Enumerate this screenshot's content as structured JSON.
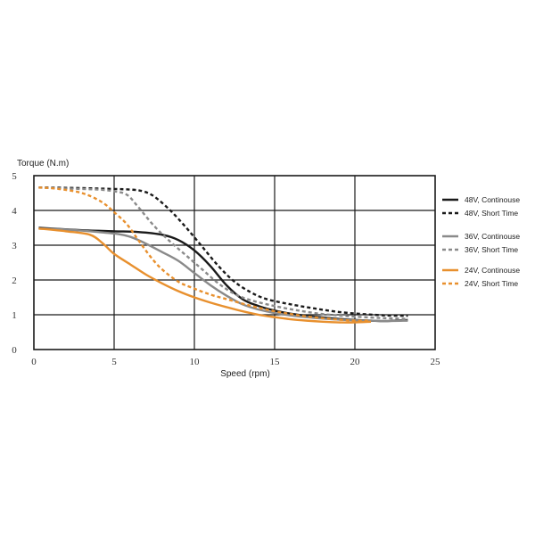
{
  "chart_data": {
    "type": "line",
    "title": "",
    "xlabel": "Speed (rpm)",
    "ylabel": "Torque (N.m)",
    "xlim": [
      0,
      25
    ],
    "ylim": [
      0,
      5
    ],
    "xticks": [
      0,
      5,
      10,
      15,
      20,
      25
    ],
    "yticks": [
      0,
      1,
      2,
      3,
      4,
      5
    ],
    "grid": true,
    "legend_position": "right",
    "series": [
      {
        "name": "48V, Continouse",
        "color": "#1a1a1a",
        "style": "solid",
        "x": [
          0.3,
          3,
          5,
          6.5,
          8,
          9,
          10,
          11,
          12,
          13,
          14,
          15,
          16,
          17,
          18,
          19,
          20,
          21,
          22,
          23.3
        ],
        "y": [
          3.5,
          3.43,
          3.4,
          3.38,
          3.3,
          3.15,
          2.85,
          2.4,
          1.85,
          1.45,
          1.25,
          1.12,
          1.03,
          0.97,
          0.92,
          0.88,
          0.85,
          0.83,
          0.82,
          0.85
        ]
      },
      {
        "name": "48V, Short  Time",
        "color": "#1a1a1a",
        "style": "dashed",
        "x": [
          0.3,
          2,
          4,
          6,
          6.8,
          7.5,
          8.5,
          9.5,
          10.5,
          11.5,
          12.5,
          13.5,
          14.5,
          16,
          17.5,
          19,
          20.5,
          22,
          23.3
        ],
        "y": [
          4.66,
          4.65,
          4.63,
          4.6,
          4.55,
          4.4,
          4.0,
          3.5,
          2.95,
          2.4,
          1.95,
          1.65,
          1.45,
          1.3,
          1.18,
          1.08,
          1.02,
          0.98,
          0.97
        ]
      },
      {
        "name": "36V, Continouse",
        "color": "#8a8a8a",
        "style": "solid",
        "x": [
          0.3,
          2,
          4,
          5.5,
          6.5,
          8,
          9,
          10,
          11,
          12,
          13,
          14,
          15,
          16,
          17,
          18,
          19,
          20,
          21,
          22,
          23.3
        ],
        "y": [
          3.48,
          3.45,
          3.38,
          3.3,
          3.15,
          2.8,
          2.55,
          2.2,
          1.85,
          1.55,
          1.3,
          1.15,
          1.05,
          0.98,
          0.93,
          0.89,
          0.86,
          0.84,
          0.83,
          0.82,
          0.83
        ]
      },
      {
        "name": "36V, Short  Time",
        "color": "#8a8a8a",
        "style": "dashed",
        "x": [
          0.3,
          2,
          4,
          5,
          5.8,
          6.5,
          7.5,
          8.5,
          9.5,
          10.5,
          11.5,
          12.5,
          13.5,
          15,
          16.5,
          18,
          19.5,
          21,
          22,
          23.3
        ],
        "y": [
          4.66,
          4.63,
          4.6,
          4.55,
          4.45,
          4.1,
          3.55,
          3.1,
          2.7,
          2.3,
          1.9,
          1.6,
          1.42,
          1.25,
          1.12,
          1.02,
          0.96,
          0.92,
          0.9,
          0.88
        ]
      },
      {
        "name": "24V, Continouse",
        "color": "#e8902e",
        "style": "solid",
        "x": [
          0.3,
          2,
          3.5,
          4.3,
          5,
          6,
          7,
          8,
          9,
          10,
          11,
          12,
          13,
          14,
          15,
          16,
          17,
          18,
          19,
          20,
          21
        ],
        "y": [
          3.48,
          3.4,
          3.3,
          3.05,
          2.75,
          2.45,
          2.15,
          1.9,
          1.68,
          1.5,
          1.35,
          1.22,
          1.1,
          1.0,
          0.93,
          0.87,
          0.83,
          0.8,
          0.78,
          0.78,
          0.8
        ]
      },
      {
        "name": "24V, Short  Time",
        "color": "#e8902e",
        "style": "dashed",
        "x": [
          0.3,
          1.5,
          3,
          4.2,
          5,
          5.8,
          6.5,
          7.3,
          8,
          9,
          10,
          11,
          12,
          13,
          14,
          15,
          16,
          17,
          18,
          19,
          20,
          21
        ],
        "y": [
          4.66,
          4.62,
          4.5,
          4.25,
          3.95,
          3.6,
          3.15,
          2.65,
          2.3,
          1.95,
          1.75,
          1.58,
          1.45,
          1.32,
          1.2,
          1.1,
          1.02,
          0.95,
          0.9,
          0.86,
          0.83,
          0.83
        ]
      }
    ]
  }
}
